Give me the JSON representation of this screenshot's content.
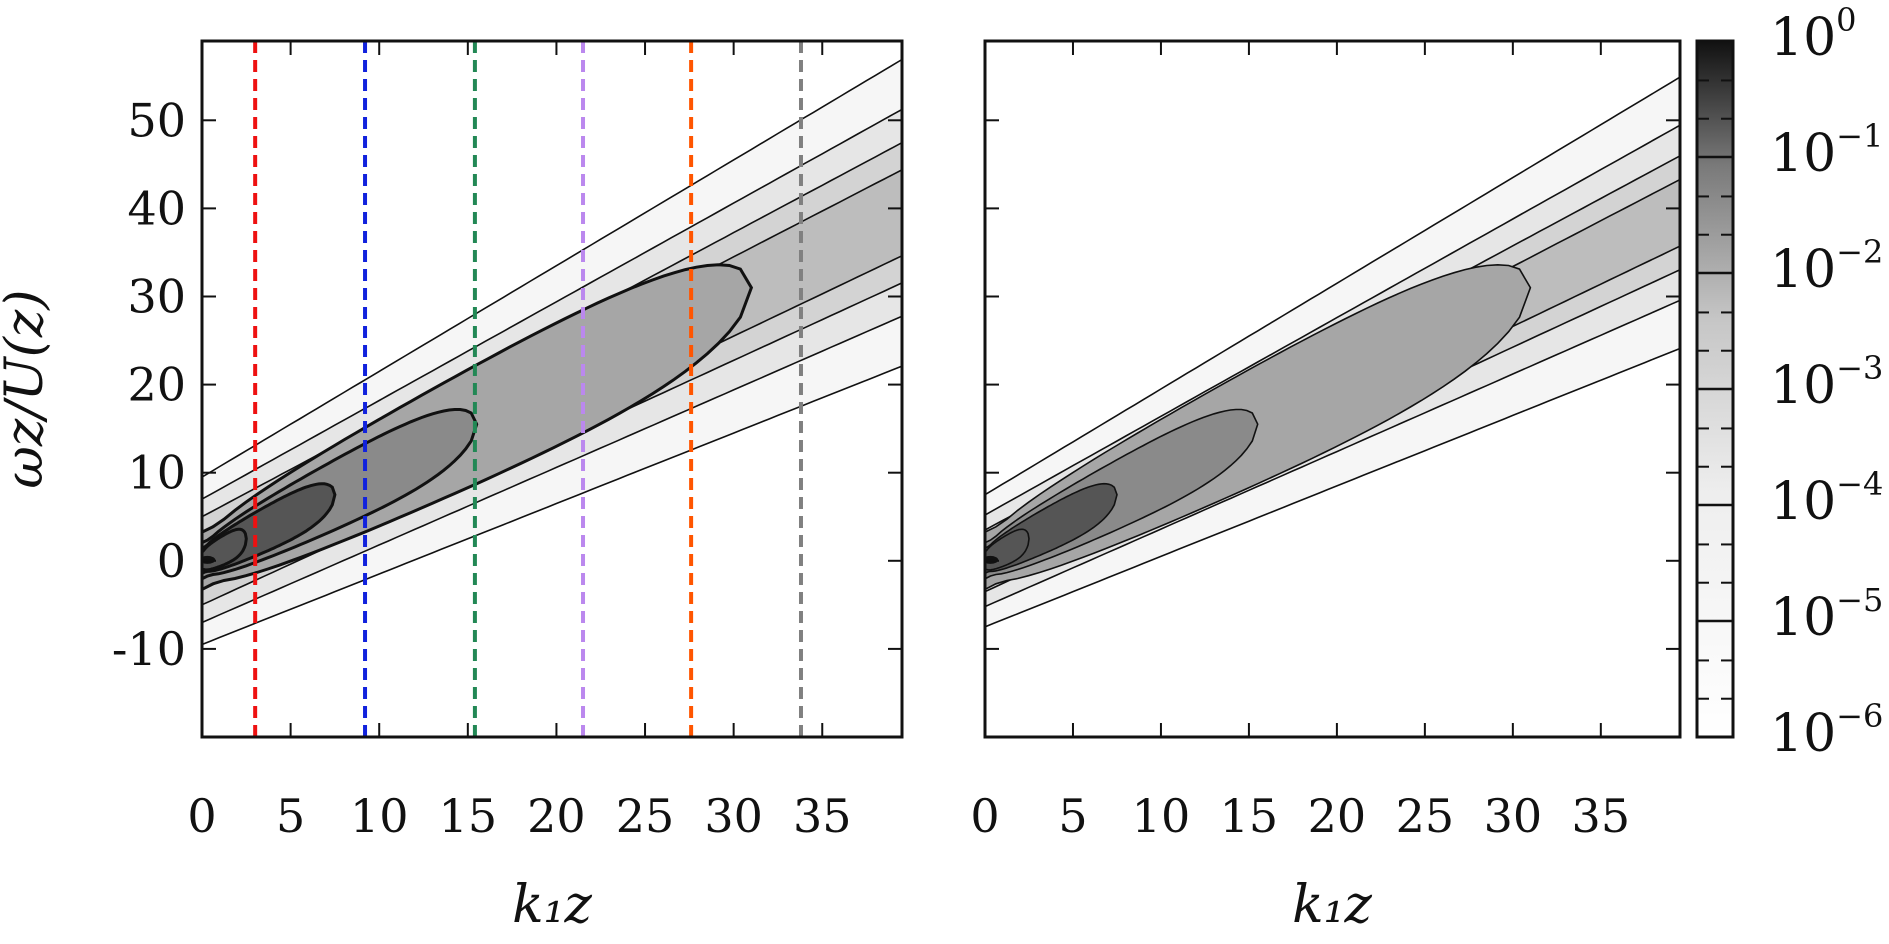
{
  "chart_data": [
    {
      "type": "heatmap",
      "panel": "left",
      "xlabel": "k₁z",
      "ylabel": "ωz/U(z)",
      "xlim": [
        0,
        39.5
      ],
      "ylim": [
        -20,
        59
      ],
      "xticks": [
        "0",
        "5",
        "10",
        "15",
        "20",
        "25",
        "30",
        "35"
      ],
      "yticks": [
        "50",
        "40",
        "30",
        "20",
        "10",
        "0",
        "-10"
      ],
      "ytick_values": [
        50,
        40,
        30,
        20,
        10,
        0,
        -10
      ],
      "xtick_values": [
        0,
        5,
        10,
        15,
        20,
        25,
        30,
        35
      ],
      "ridge_slope_per_k1z": 1.0,
      "band_half_widths": [
        9.5,
        7.0,
        5.0,
        3.3
      ],
      "band_growth_per_k1z": [
        0.2,
        0.12,
        0.075,
        0.04
      ],
      "closed_contour_tips_k1z": [
        2.5,
        7.5,
        15.5,
        31.0
      ],
      "vertical_markers": [
        {
          "k1z": 3.0,
          "color": "#ee1111"
        },
        {
          "k1z": 9.2,
          "color": "#1122dd"
        },
        {
          "k1z": 15.4,
          "color": "#228855"
        },
        {
          "k1z": 21.5,
          "color": "#bb88ee"
        },
        {
          "k1z": 27.6,
          "color": "#ff5500"
        },
        {
          "k1z": 33.8,
          "color": "#808080"
        }
      ],
      "grid": false
    },
    {
      "type": "heatmap",
      "panel": "right",
      "xlabel": "k₁z",
      "ylabel": "",
      "xlim": [
        0,
        39.5
      ],
      "ylim": [
        -20,
        59
      ],
      "xticks": [
        "0",
        "5",
        "10",
        "15",
        "20",
        "25",
        "30",
        "35"
      ],
      "xtick_values": [
        0,
        5,
        10,
        15,
        20,
        25,
        30,
        35
      ],
      "ridge_slope_per_k1z": 1.0,
      "band_half_widths": [
        7.5,
        5.2,
        3.5,
        2.2
      ],
      "band_growth_per_k1z": [
        0.2,
        0.12,
        0.075,
        0.04
      ],
      "closed_contour_tips_k1z": [
        2.5,
        7.5,
        15.5,
        31.0
      ],
      "grid": false
    }
  ],
  "colorbar": {
    "scale": "log",
    "range": [
      1e-06,
      1
    ],
    "labels": [
      {
        "base": "10",
        "exp": "0",
        "value": 1
      },
      {
        "base": "10",
        "exp": "−1",
        "value": 0.1
      },
      {
        "base": "10",
        "exp": "−2",
        "value": 0.01
      },
      {
        "base": "10",
        "exp": "−3",
        "value": 0.001
      },
      {
        "base": "10",
        "exp": "−4",
        "value": 0.0001
      },
      {
        "base": "10",
        "exp": "−5",
        "value": 1e-05
      },
      {
        "base": "10",
        "exp": "−6",
        "value": 1e-06
      }
    ],
    "color_low": "#ffffff",
    "color_high": "#111111"
  }
}
